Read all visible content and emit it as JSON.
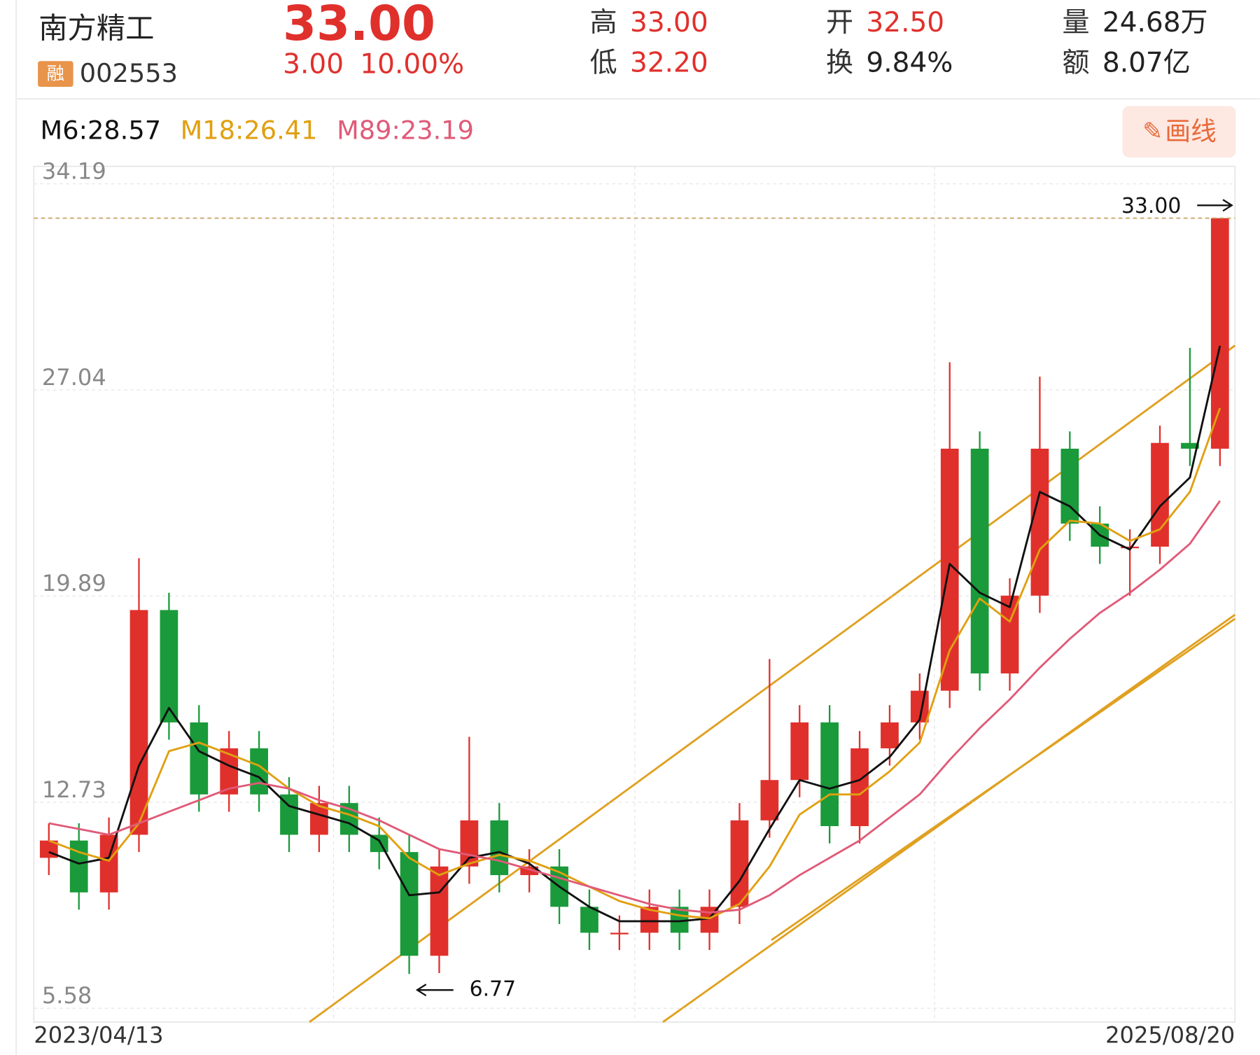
{
  "header": {
    "name": "南方精工",
    "margin_tag": "融",
    "code": "002553",
    "price": "33.00",
    "change": "3.00",
    "change_pct": "10.00%",
    "stats": [
      {
        "label": "高",
        "value": "33.00"
      },
      {
        "label": "低",
        "value": "32.20"
      },
      {
        "label": "开",
        "value": "32.50"
      },
      {
        "label": "换",
        "value": "9.84%"
      },
      {
        "label": "量",
        "value": "24.68万"
      },
      {
        "label": "额",
        "value": "8.07亿"
      }
    ]
  },
  "toolbar": {
    "draw_button": "画线"
  },
  "chart_data": {
    "type": "candlestick",
    "categories": [
      "2023/04/13",
      null,
      null,
      null,
      null,
      null,
      null,
      null,
      null,
      null,
      null,
      null,
      null,
      null,
      null,
      null,
      null,
      null,
      null,
      null,
      null,
      null,
      null,
      null,
      null,
      null,
      null,
      null,
      null,
      null,
      null,
      null,
      null,
      null,
      null,
      null,
      null,
      null,
      null,
      "2025/08/20"
    ],
    "open": [
      10.8,
      11.4,
      9.6,
      11.6,
      19.4,
      15.5,
      13.0,
      14.6,
      13.0,
      11.6,
      12.7,
      11.6,
      11.0,
      7.4,
      10.5,
      12.1,
      10.2,
      10.5,
      9.1,
      8.2,
      8.2,
      9.1,
      8.2,
      9.1,
      12.1,
      13.5,
      15.5,
      11.9,
      14.6,
      15.5,
      16.6,
      25.0,
      17.2,
      19.9,
      25.0,
      22.4,
      21.6,
      21.6,
      25.2,
      25.0
    ],
    "high": [
      12.0,
      12.0,
      12.2,
      21.2,
      20.0,
      16.1,
      15.2,
      15.2,
      13.6,
      13.3,
      13.3,
      12.2,
      11.6,
      11.1,
      15.0,
      12.7,
      11.1,
      11.1,
      9.7,
      8.8,
      9.7,
      9.7,
      9.7,
      12.7,
      17.7,
      16.1,
      16.1,
      15.2,
      16.1,
      17.2,
      28.0,
      25.6,
      20.5,
      27.5,
      25.6,
      23.0,
      22.2,
      25.8,
      28.5,
      33.0
    ],
    "low": [
      10.2,
      9.0,
      9.0,
      11.0,
      14.9,
      12.4,
      12.4,
      12.4,
      11.0,
      11.0,
      11.0,
      10.4,
      6.77,
      6.8,
      9.9,
      9.6,
      9.6,
      8.5,
      7.6,
      7.6,
      7.6,
      7.6,
      7.6,
      8.5,
      11.5,
      12.9,
      11.3,
      11.3,
      14.0,
      14.9,
      16.0,
      16.6,
      16.6,
      19.3,
      21.8,
      21.0,
      19.9,
      21.0,
      24.4,
      24.4
    ],
    "close": [
      11.4,
      9.6,
      11.6,
      19.4,
      15.5,
      13.0,
      14.6,
      13.0,
      11.6,
      12.7,
      11.6,
      11.0,
      7.4,
      10.5,
      12.1,
      10.2,
      10.5,
      9.1,
      8.2,
      8.2,
      9.1,
      8.2,
      9.1,
      12.1,
      13.5,
      15.5,
      11.9,
      14.6,
      15.5,
      16.6,
      25.0,
      17.2,
      19.9,
      25.0,
      22.4,
      21.6,
      21.6,
      25.2,
      25.0,
      33.0
    ],
    "up_color": "#e0302c",
    "down_color": "#1a9a3a",
    "series": [
      {
        "name": "M6:28.57",
        "color": "#111111",
        "values": [
          11.0,
          10.6,
          10.8,
          14.0,
          16.0,
          14.5,
          14.0,
          13.6,
          12.6,
          12.3,
          12.0,
          11.4,
          9.5,
          9.6,
          10.8,
          11.0,
          10.6,
          9.8,
          9.1,
          8.6,
          8.6,
          8.6,
          8.7,
          10.0,
          11.8,
          13.5,
          13.2,
          13.5,
          14.3,
          15.6,
          21.0,
          20.0,
          19.5,
          23.5,
          23.0,
          22.0,
          21.5,
          23.0,
          24.0,
          28.57
        ]
      },
      {
        "name": "M18:26.41",
        "color": "#e0a010",
        "values": [
          11.4,
          11.0,
          10.7,
          12.0,
          14.5,
          14.8,
          14.4,
          14.0,
          13.2,
          12.6,
          12.3,
          11.9,
          10.8,
          10.2,
          10.6,
          10.9,
          10.7,
          10.3,
          9.8,
          9.3,
          9.0,
          8.8,
          8.7,
          9.2,
          10.5,
          12.3,
          13.0,
          13.0,
          13.8,
          14.8,
          18.0,
          19.8,
          19.0,
          21.5,
          22.5,
          22.4,
          21.8,
          22.2,
          23.5,
          26.41
        ]
      },
      {
        "name": "M89:23.19",
        "color": "#e05a78",
        "values": [
          12.0,
          11.8,
          11.6,
          12.0,
          12.4,
          12.8,
          13.2,
          13.4,
          13.2,
          12.8,
          12.5,
          12.1,
          11.6,
          11.1,
          10.9,
          10.7,
          10.4,
          10.1,
          9.8,
          9.5,
          9.2,
          9.0,
          8.9,
          9.0,
          9.5,
          10.2,
          10.8,
          11.4,
          12.2,
          13.0,
          14.2,
          15.3,
          16.3,
          17.4,
          18.4,
          19.3,
          20.0,
          20.8,
          21.7,
          23.19
        ]
      }
    ],
    "ylim": [
      5.1,
      34.8
    ],
    "yticks": [
      5.58,
      12.73,
      19.89,
      27.04,
      34.19
    ],
    "grid": true,
    "annotations": [
      {
        "text": "33.00"
      },
      {
        "text": "6.77"
      }
    ]
  }
}
